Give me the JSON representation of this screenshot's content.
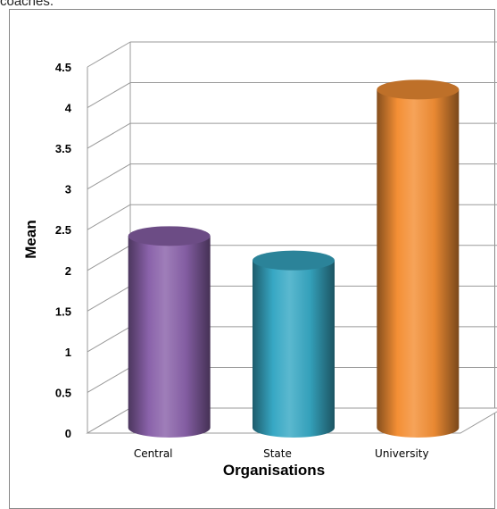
{
  "caption_fragment": "coaches.",
  "chart_data": {
    "type": "bar",
    "style": "3d-cylinder",
    "categories": [
      "Central",
      "State",
      "University"
    ],
    "values": [
      2.4,
      2.1,
      4.2
    ],
    "colors": [
      "#8a62aa",
      "#37a8c4",
      "#f48f35"
    ],
    "xlabel": "Organisations",
    "ylabel": "Mean",
    "ylim": [
      0,
      4.5
    ],
    "yticks": [
      "0",
      "0.5",
      "1",
      "1.5",
      "2",
      "2.5",
      "3",
      "3.5",
      "4",
      "4.5"
    ],
    "grid": true,
    "legend": "none"
  }
}
